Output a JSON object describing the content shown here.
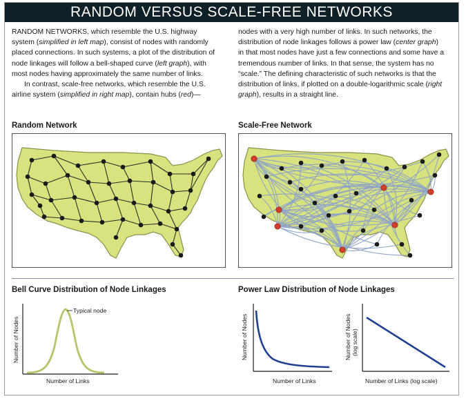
{
  "title": "RANDOM VERSUS SCALE-FREE NETWORKS",
  "text_left": {
    "p1_a": "RANDOM NETWORKS, which resemble the U.S. highway system (",
    "p1_b": "simplified in left map",
    "p1_c": "), consist of nodes with randomly placed connections. In such systems, a plot of the distribution of node linkages will follow a bell-shaped curve (",
    "p1_d": "left graph",
    "p1_e": "), with most nodes having approximately the same number of links.",
    "p2_a": "In contrast, scale-free networks, which resemble the U.S. airline system (",
    "p2_b": "simplified in right map",
    "p2_c": "), contain hubs (",
    "p2_d": "red",
    "p2_e": ")—"
  },
  "text_right": {
    "a": "nodes with a very high number of links. In such networks, the distribution of node linkages follows a power law (",
    "b": "center graph",
    "c": ") in that most nodes have just a few connections and some have a tremendous number of links. In that sense, the system has no “scale.” The defining characteristic of such networks is that the distribution of links, if plotted on a double-logarithmic scale (",
    "d": "right graph",
    "e": "), results in a straight line."
  },
  "random_network": {
    "title": "Random Network"
  },
  "scale_free_network": {
    "title": "Scale-Free Network"
  },
  "bell_curve": {
    "title": "Bell Curve Distribution of Node Linkages",
    "ylabel": "Number of Nodes",
    "xlabel": "Number of Links",
    "annotation": "Typical node"
  },
  "power_law": {
    "title": "Power Law Distribution of Node Linkages",
    "center_ylabel": "Number of Nodes",
    "center_xlabel": "Number of Links",
    "right_ylabel_1": "Number of Nodes",
    "right_ylabel_2": "(log scale)",
    "right_xlabel": "Number of Links (log scale)"
  },
  "colors": {
    "title_bg": "#0f2027",
    "land": "#d8e37f",
    "land_stroke": "#8a8f4a",
    "node": "#1a1a1a",
    "hub": "#d2402c",
    "road": "#2a2a2a",
    "air_link": "#8fa4c8",
    "bell_curve": "#b9c46a",
    "power_curve": "#1f3f8f"
  }
}
